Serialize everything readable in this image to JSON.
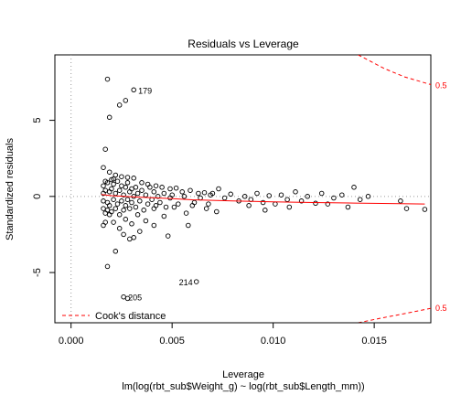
{
  "chart_data": {
    "type": "scatter",
    "title": "Residuals vs Leverage",
    "xlabel": "Leverage",
    "ylabel": "Standardized residuals",
    "subtitle": "lm(log(rbt_sub$Weight_g) ~ log(rbt_sub$Length_mm))",
    "xlim": [
      -0.0008,
      0.0178
    ],
    "ylim": [
      -8.3,
      9.3
    ],
    "x_ticks": [
      {
        "value": 0,
        "label": "0.000"
      },
      {
        "value": 0.005,
        "label": "0.005"
      },
      {
        "value": 0.01,
        "label": "0.010"
      },
      {
        "value": 0.015,
        "label": "0.015"
      }
    ],
    "y_ticks": [
      {
        "value": -5,
        "label": "-5"
      },
      {
        "value": 0,
        "label": "0"
      },
      {
        "value": 5,
        "label": "5"
      }
    ],
    "reference_lines": {
      "x": 0,
      "y": 0,
      "style": "dotted",
      "color": "#9a9a9a"
    },
    "colors": {
      "points": "#000000",
      "smooth": "#ff0000",
      "cooks": "#ff0000",
      "axes": "#000000"
    },
    "smooth_line": {
      "x": [
        0.0015,
        0.002,
        0.003,
        0.004,
        0.005,
        0.006,
        0.008,
        0.01,
        0.012,
        0.014,
        0.0163,
        0.0175
      ],
      "y": [
        0.12,
        0.05,
        -0.03,
        -0.08,
        -0.15,
        -0.22,
        -0.3,
        -0.36,
        -0.4,
        -0.44,
        -0.48,
        -0.5
      ]
    },
    "cooks_contours": [
      {
        "level_label": "0.5",
        "x": [
          0.0142,
          0.0155,
          0.0165,
          0.0178
        ],
        "y": [
          9.3,
          8.4,
          7.85,
          7.35
        ],
        "label_y": 7.3
      },
      {
        "level_label": "0.5",
        "x": [
          0.0142,
          0.0155,
          0.0165,
          0.0178
        ],
        "y": [
          -8.3,
          -7.95,
          -7.7,
          -7.35
        ],
        "label_y": -7.35
      }
    ],
    "legend": {
      "position": "bottom-left",
      "entries": [
        {
          "label": "Cook's distance",
          "style": "dashed",
          "color": "#ff0000"
        }
      ]
    },
    "labeled_points": [
      {
        "label": "179",
        "x": 0.0031,
        "y": 7.0
      },
      {
        "label": "214",
        "x": 0.0062,
        "y": -5.6
      },
      {
        "label": "205",
        "x": 0.0026,
        "y": -6.6
      }
    ],
    "points": [
      [
        0.0018,
        7.7
      ],
      [
        0.0031,
        7.0
      ],
      [
        0.0027,
        6.3
      ],
      [
        0.0024,
        6.0
      ],
      [
        0.0019,
        5.2
      ],
      [
        0.0017,
        3.1
      ],
      [
        0.0016,
        1.9
      ],
      [
        0.0019,
        1.6
      ],
      [
        0.0022,
        1.4
      ],
      [
        0.0025,
        1.3
      ],
      [
        0.0028,
        1.25
      ],
      [
        0.0031,
        1.2
      ],
      [
        0.0021,
        1.15
      ],
      [
        0.0035,
        0.9
      ],
      [
        0.0038,
        0.8
      ],
      [
        0.0042,
        0.7
      ],
      [
        0.0045,
        0.6
      ],
      [
        0.0049,
        0.5
      ],
      [
        0.0052,
        0.55
      ],
      [
        0.0055,
        0.3
      ],
      [
        0.0059,
        0.4
      ],
      [
        0.0063,
        0.2
      ],
      [
        0.0066,
        0.25
      ],
      [
        0.0069,
        0.1
      ],
      [
        0.0073,
        0.5
      ],
      [
        0.0076,
        -0.1
      ],
      [
        0.0079,
        0.15
      ],
      [
        0.0083,
        -0.3
      ],
      [
        0.0086,
        0.0
      ],
      [
        0.0089,
        -0.2
      ],
      [
        0.0092,
        0.2
      ],
      [
        0.0095,
        -0.4
      ],
      [
        0.0098,
        0.05
      ],
      [
        0.0101,
        -0.5
      ],
      [
        0.0104,
        0.1
      ],
      [
        0.0107,
        -0.2
      ],
      [
        0.0111,
        0.3
      ],
      [
        0.0114,
        -0.3
      ],
      [
        0.0117,
        0.0
      ],
      [
        0.0121,
        -0.45
      ],
      [
        0.0124,
        0.2
      ],
      [
        0.0127,
        -0.5
      ],
      [
        0.013,
        -0.1
      ],
      [
        0.0134,
        0.1
      ],
      [
        0.0137,
        -0.7
      ],
      [
        0.014,
        0.6
      ],
      [
        0.0143,
        -0.2
      ],
      [
        0.0147,
        0.0
      ],
      [
        0.0163,
        -0.3
      ],
      [
        0.0166,
        -0.8
      ],
      [
        0.0175,
        -0.85
      ],
      [
        0.0108,
        -0.7
      ],
      [
        0.0096,
        -0.9
      ],
      [
        0.0088,
        -0.6
      ],
      [
        0.0072,
        -1.0
      ],
      [
        0.0067,
        -0.8
      ],
      [
        0.0061,
        -0.4
      ],
      [
        0.0057,
        -1.1
      ],
      [
        0.0051,
        -0.7
      ],
      [
        0.0046,
        -1.3
      ],
      [
        0.0041,
        -0.8
      ],
      [
        0.0037,
        -1.6
      ],
      [
        0.0033,
        -1.2
      ],
      [
        0.003,
        -1.8
      ],
      [
        0.0027,
        -1.5
      ],
      [
        0.0024,
        -2.1
      ],
      [
        0.0021,
        -1.7
      ],
      [
        0.0019,
        -1.2
      ],
      [
        0.0017,
        -1.7
      ],
      [
        0.0016,
        -1.9
      ],
      [
        0.0034,
        -2.3
      ],
      [
        0.0029,
        -2.8
      ],
      [
        0.0026,
        -2.5
      ],
      [
        0.0041,
        -1.9
      ],
      [
        0.0048,
        -2.6
      ],
      [
        0.0058,
        -1.9
      ],
      [
        0.0031,
        -2.7
      ],
      [
        0.0022,
        -3.6
      ],
      [
        0.0018,
        -4.6
      ],
      [
        0.0062,
        -5.6
      ],
      [
        0.0026,
        -6.6
      ],
      [
        0.0028,
        -6.7
      ],
      [
        0.0016,
        0.2
      ],
      [
        0.0016,
        -0.3
      ],
      [
        0.0016,
        0.7
      ],
      [
        0.0016,
        -0.8
      ],
      [
        0.0017,
        1.0
      ],
      [
        0.0017,
        -1.1
      ],
      [
        0.0017,
        0.4
      ],
      [
        0.0018,
        -0.4
      ],
      [
        0.0018,
        0.9
      ],
      [
        0.0018,
        -0.9
      ],
      [
        0.0019,
        0.3
      ],
      [
        0.0019,
        -0.6
      ],
      [
        0.002,
        1.1
      ],
      [
        0.002,
        -1.0
      ],
      [
        0.002,
        0.5
      ],
      [
        0.0021,
        -0.2
      ],
      [
        0.0021,
        0.8
      ],
      [
        0.0022,
        -0.8
      ],
      [
        0.0022,
        0.2
      ],
      [
        0.0023,
        -0.5
      ],
      [
        0.0023,
        1.0
      ],
      [
        0.0024,
        -1.2
      ],
      [
        0.0024,
        0.4
      ],
      [
        0.0025,
        -0.3
      ],
      [
        0.0025,
        0.7
      ],
      [
        0.0026,
        -0.9
      ],
      [
        0.0026,
        0.1
      ],
      [
        0.0027,
        0.6
      ],
      [
        0.0027,
        -0.6
      ],
      [
        0.0028,
        -0.2
      ],
      [
        0.0028,
        0.9
      ],
      [
        0.0029,
        0.3
      ],
      [
        0.0029,
        -0.8
      ],
      [
        0.003,
        0.5
      ],
      [
        0.003,
        -0.4
      ],
      [
        0.0031,
        0.0
      ],
      [
        0.0032,
        0.6
      ],
      [
        0.0032,
        -0.7
      ],
      [
        0.0033,
        0.2
      ],
      [
        0.0034,
        -0.3
      ],
      [
        0.0035,
        0.4
      ],
      [
        0.0036,
        -0.9
      ],
      [
        0.0037,
        0.1
      ],
      [
        0.0038,
        -0.5
      ],
      [
        0.0039,
        0.6
      ],
      [
        0.004,
        -0.2
      ],
      [
        0.0041,
        0.3
      ],
      [
        0.0042,
        -0.6
      ],
      [
        0.0043,
        0.0
      ],
      [
        0.0044,
        -0.4
      ],
      [
        0.0046,
        0.2
      ],
      [
        0.0047,
        -0.7
      ],
      [
        0.0049,
        -0.1
      ],
      [
        0.005,
        0.1
      ],
      [
        0.0053,
        -0.5
      ],
      [
        0.0056,
        0.0
      ],
      [
        0.006,
        -0.6
      ],
      [
        0.0064,
        -0.1
      ],
      [
        0.0068,
        -0.5
      ],
      [
        0.007,
        0.2
      ]
    ]
  }
}
